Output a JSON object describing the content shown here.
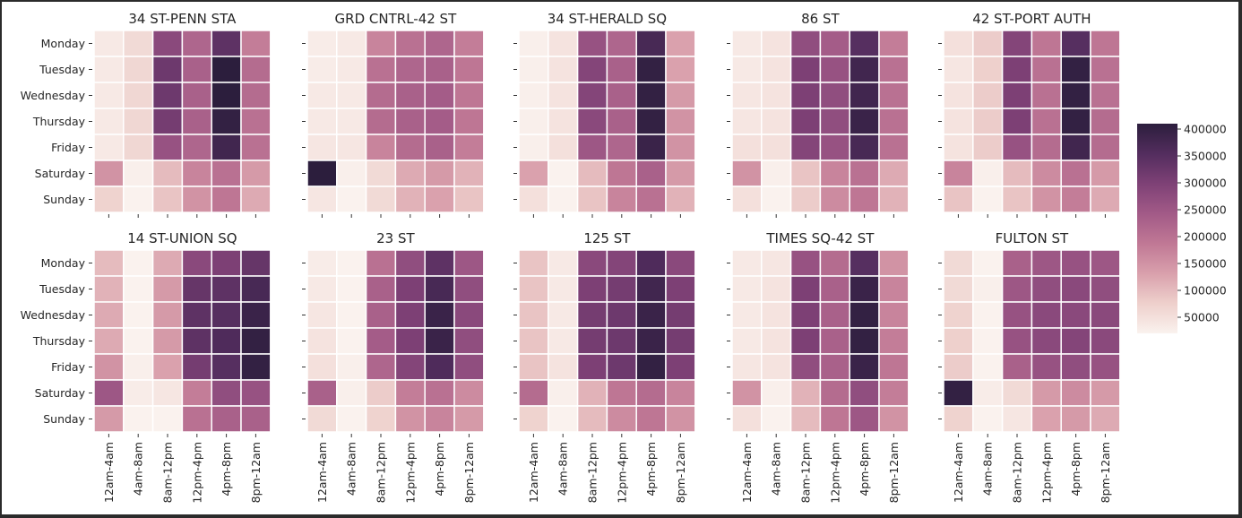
{
  "chart_data": {
    "type": "heatmap",
    "days": [
      "Monday",
      "Tuesday",
      "Wednesday",
      "Thursday",
      "Friday",
      "Saturday",
      "Sunday"
    ],
    "time_bins": [
      "12am-4am",
      "4am-8am",
      "8am-12pm",
      "12pm-4pm",
      "4pm-8pm",
      "8pm-12am"
    ],
    "colorbar": {
      "min": 20000,
      "max": 410000,
      "ticks": [
        "50000",
        "100000",
        "150000",
        "200000",
        "250000",
        "300000",
        "350000",
        "400000"
      ],
      "colors": [
        "#faf2ee",
        "#eed0cc",
        "#d9a0ac",
        "#c07895",
        "#a25a87",
        "#7e4176",
        "#532d5e",
        "#2c1e3d"
      ]
    },
    "panels": [
      {
        "title": "34 ST-PENN STA",
        "values": [
          [
            35000,
            60000,
            280000,
            220000,
            340000,
            180000
          ],
          [
            35000,
            65000,
            320000,
            230000,
            410000,
            210000
          ],
          [
            35000,
            65000,
            320000,
            230000,
            410000,
            210000
          ],
          [
            35000,
            65000,
            310000,
            230000,
            400000,
            200000
          ],
          [
            35000,
            65000,
            260000,
            220000,
            380000,
            200000
          ],
          [
            150000,
            25000,
            100000,
            170000,
            200000,
            140000
          ],
          [
            70000,
            20000,
            90000,
            150000,
            190000,
            120000
          ]
        ]
      },
      {
        "title": "GRD CNTRL-42 ST",
        "values": [
          [
            30000,
            35000,
            170000,
            200000,
            220000,
            180000
          ],
          [
            30000,
            35000,
            200000,
            220000,
            230000,
            190000
          ],
          [
            35000,
            35000,
            210000,
            230000,
            240000,
            190000
          ],
          [
            35000,
            35000,
            210000,
            230000,
            240000,
            190000
          ],
          [
            40000,
            40000,
            170000,
            210000,
            230000,
            180000
          ],
          [
            410000,
            25000,
            60000,
            120000,
            140000,
            110000
          ],
          [
            40000,
            20000,
            60000,
            110000,
            130000,
            90000
          ]
        ]
      },
      {
        "title": "34 ST-HERALD SQ",
        "values": [
          [
            25000,
            45000,
            260000,
            220000,
            370000,
            130000
          ],
          [
            25000,
            45000,
            290000,
            230000,
            400000,
            130000
          ],
          [
            25000,
            45000,
            290000,
            230000,
            400000,
            140000
          ],
          [
            25000,
            45000,
            280000,
            230000,
            400000,
            150000
          ],
          [
            25000,
            50000,
            250000,
            220000,
            390000,
            150000
          ],
          [
            130000,
            20000,
            100000,
            190000,
            230000,
            140000
          ],
          [
            50000,
            20000,
            90000,
            170000,
            200000,
            110000
          ]
        ]
      },
      {
        "title": "86 ST",
        "values": [
          [
            35000,
            45000,
            270000,
            240000,
            350000,
            180000
          ],
          [
            35000,
            45000,
            300000,
            260000,
            380000,
            200000
          ],
          [
            40000,
            45000,
            300000,
            270000,
            380000,
            200000
          ],
          [
            40000,
            45000,
            300000,
            270000,
            390000,
            200000
          ],
          [
            50000,
            50000,
            290000,
            260000,
            370000,
            200000
          ],
          [
            150000,
            25000,
            90000,
            170000,
            200000,
            120000
          ],
          [
            50000,
            20000,
            80000,
            160000,
            190000,
            110000
          ]
        ]
      },
      {
        "title": "42 ST-PORT AUTH",
        "values": [
          [
            50000,
            80000,
            290000,
            190000,
            350000,
            190000
          ],
          [
            40000,
            75000,
            300000,
            200000,
            400000,
            200000
          ],
          [
            45000,
            80000,
            300000,
            200000,
            400000,
            200000
          ],
          [
            45000,
            80000,
            300000,
            200000,
            400000,
            210000
          ],
          [
            45000,
            80000,
            260000,
            210000,
            380000,
            210000
          ],
          [
            170000,
            25000,
            100000,
            160000,
            200000,
            140000
          ],
          [
            90000,
            20000,
            90000,
            150000,
            180000,
            120000
          ]
        ]
      },
      {
        "title": "14 ST-UNION SQ",
        "values": [
          [
            100000,
            0,
            120000,
            280000,
            300000,
            330000
          ],
          [
            110000,
            0,
            140000,
            330000,
            340000,
            370000
          ],
          [
            120000,
            0,
            140000,
            340000,
            350000,
            390000
          ],
          [
            120000,
            0,
            140000,
            340000,
            360000,
            400000
          ],
          [
            150000,
            25000,
            130000,
            310000,
            350000,
            400000
          ],
          [
            250000,
            30000,
            40000,
            180000,
            270000,
            260000
          ],
          [
            140000,
            20000,
            20000,
            200000,
            230000,
            230000
          ]
        ]
      },
      {
        "title": "23 ST",
        "values": [
          [
            30000,
            20000,
            200000,
            270000,
            340000,
            250000
          ],
          [
            35000,
            20000,
            230000,
            300000,
            370000,
            270000
          ],
          [
            40000,
            20000,
            230000,
            300000,
            390000,
            280000
          ],
          [
            45000,
            20000,
            240000,
            300000,
            390000,
            270000
          ],
          [
            50000,
            25000,
            220000,
            290000,
            360000,
            270000
          ],
          [
            230000,
            25000,
            80000,
            180000,
            200000,
            160000
          ],
          [
            60000,
            20000,
            70000,
            150000,
            170000,
            140000
          ]
        ]
      },
      {
        "title": "125 ST",
        "values": [
          [
            90000,
            35000,
            280000,
            290000,
            360000,
            280000
          ],
          [
            90000,
            35000,
            300000,
            310000,
            380000,
            300000
          ],
          [
            90000,
            35000,
            310000,
            320000,
            390000,
            310000
          ],
          [
            90000,
            35000,
            310000,
            320000,
            390000,
            310000
          ],
          [
            90000,
            45000,
            300000,
            320000,
            400000,
            300000
          ],
          [
            210000,
            25000,
            110000,
            190000,
            210000,
            170000
          ],
          [
            70000,
            20000,
            100000,
            160000,
            190000,
            150000
          ]
        ]
      },
      {
        "title": "TIMES SQ-42 ST",
        "values": [
          [
            35000,
            40000,
            260000,
            210000,
            350000,
            150000
          ],
          [
            35000,
            45000,
            300000,
            230000,
            390000,
            170000
          ],
          [
            35000,
            45000,
            300000,
            230000,
            400000,
            170000
          ],
          [
            35000,
            45000,
            300000,
            230000,
            400000,
            180000
          ],
          [
            40000,
            45000,
            270000,
            230000,
            390000,
            190000
          ],
          [
            150000,
            25000,
            110000,
            210000,
            270000,
            180000
          ],
          [
            50000,
            20000,
            100000,
            190000,
            250000,
            150000
          ]
        ]
      },
      {
        "title": "FULTON ST",
        "values": [
          [
            60000,
            0,
            230000,
            250000,
            260000,
            250000
          ],
          [
            60000,
            25000,
            250000,
            270000,
            280000,
            270000
          ],
          [
            70000,
            0,
            260000,
            280000,
            280000,
            280000
          ],
          [
            75000,
            0,
            260000,
            280000,
            290000,
            280000
          ],
          [
            80000,
            0,
            230000,
            260000,
            270000,
            260000
          ],
          [
            400000,
            30000,
            60000,
            140000,
            160000,
            140000
          ],
          [
            70000,
            20000,
            40000,
            130000,
            140000,
            120000
          ]
        ]
      }
    ]
  }
}
